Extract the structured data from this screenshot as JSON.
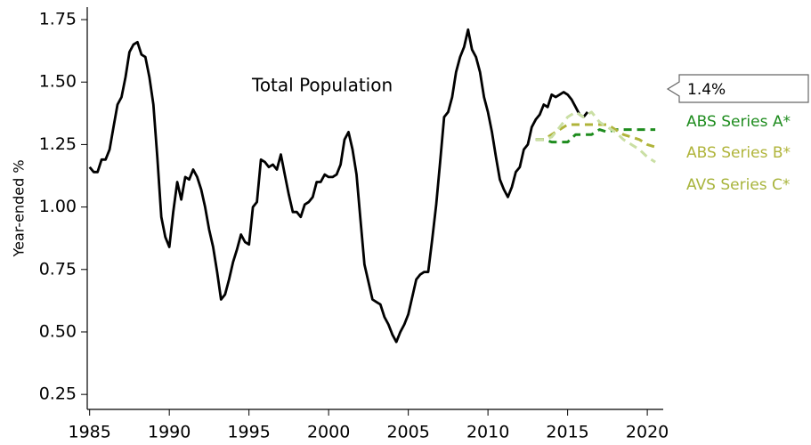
{
  "chart_data": {
    "type": "line",
    "y_label": "Year-ended %",
    "callout": "1.4%",
    "xlim": [
      1984.85,
      2021.0
    ],
    "xticks": [
      1985,
      1990,
      1995,
      2000,
      2005,
      2010,
      2015,
      2020
    ],
    "ylim": [
      0.19,
      1.8
    ],
    "yticks": [
      0.25,
      {
        "value": 0.5,
        "label": "0.50"
      },
      0.75,
      {
        "value": 1.0,
        "label": "1.00"
      },
      1.25,
      {
        "value": 1.5,
        "label": "1.50"
      },
      1.75
    ],
    "series": [
      {
        "name": "Total Population",
        "color": "#000000",
        "dashed": false,
        "x": [
          1985.0,
          1985.25,
          1985.5,
          1985.75,
          1986.0,
          1986.25,
          1986.5,
          1986.75,
          1987.0,
          1987.25,
          1987.5,
          1987.75,
          1988.0,
          1988.25,
          1988.5,
          1988.75,
          1989.0,
          1989.25,
          1989.5,
          1989.75,
          1990.0,
          1990.25,
          1990.5,
          1990.75,
          1991.0,
          1991.25,
          1991.5,
          1991.75,
          1992.0,
          1992.25,
          1992.5,
          1992.75,
          1993.0,
          1993.25,
          1993.5,
          1993.75,
          1994.0,
          1994.25,
          1994.5,
          1994.75,
          1995.0,
          1995.25,
          1995.5,
          1995.75,
          1996.0,
          1996.25,
          1996.5,
          1996.75,
          1997.0,
          1997.25,
          1997.5,
          1997.75,
          1998.0,
          1998.25,
          1998.5,
          1998.75,
          1999.0,
          1999.25,
          1999.5,
          1999.75,
          2000.0,
          2000.25,
          2000.5,
          2000.75,
          2001.0,
          2001.25,
          2001.5,
          2001.75,
          2002.0,
          2002.25,
          2002.5,
          2002.75,
          2003.0,
          2003.25,
          2003.5,
          2003.75,
          2004.0,
          2004.25,
          2004.5,
          2004.75,
          2005.0,
          2005.25,
          2005.5,
          2005.75,
          2006.0,
          2006.25,
          2006.5,
          2006.75,
          2007.0,
          2007.25,
          2007.5,
          2007.75,
          2008.0,
          2008.25,
          2008.5,
          2008.75,
          2009.0,
          2009.25,
          2009.5,
          2009.75,
          2010.0,
          2010.25,
          2010.5,
          2010.75,
          2011.0,
          2011.25,
          2011.5,
          2011.75,
          2012.0,
          2012.25,
          2012.5,
          2012.75,
          2013.0,
          2013.25,
          2013.5,
          2013.75,
          2014.0,
          2014.25,
          2014.5,
          2014.75,
          2015.0,
          2015.25,
          2015.5,
          2015.75,
          2016.0,
          2016.25
        ],
        "values": [
          1.16,
          1.14,
          1.14,
          1.19,
          1.19,
          1.23,
          1.32,
          1.41,
          1.44,
          1.52,
          1.62,
          1.65,
          1.66,
          1.61,
          1.6,
          1.52,
          1.41,
          1.2,
          0.96,
          0.88,
          0.84,
          0.98,
          1.1,
          1.03,
          1.12,
          1.11,
          1.15,
          1.12,
          1.07,
          1.0,
          0.91,
          0.84,
          0.74,
          0.63,
          0.65,
          0.71,
          0.78,
          0.83,
          0.89,
          0.86,
          0.85,
          1.0,
          1.02,
          1.19,
          1.18,
          1.16,
          1.17,
          1.15,
          1.21,
          1.13,
          1.05,
          0.98,
          0.98,
          0.96,
          1.01,
          1.02,
          1.04,
          1.1,
          1.1,
          1.13,
          1.12,
          1.12,
          1.13,
          1.17,
          1.27,
          1.3,
          1.23,
          1.13,
          0.95,
          0.77,
          0.7,
          0.63,
          0.62,
          0.61,
          0.56,
          0.53,
          0.49,
          0.46,
          0.5,
          0.53,
          0.57,
          0.64,
          0.71,
          0.73,
          0.74,
          0.74,
          0.87,
          1.01,
          1.18,
          1.36,
          1.38,
          1.44,
          1.54,
          1.6,
          1.64,
          1.71,
          1.63,
          1.6,
          1.54,
          1.44,
          1.38,
          1.3,
          1.2,
          1.11,
          1.07,
          1.04,
          1.08,
          1.14,
          1.16,
          1.23,
          1.25,
          1.32,
          1.35,
          1.37,
          1.41,
          1.4,
          1.45,
          1.44,
          1.45,
          1.46,
          1.45,
          1.43,
          1.4,
          1.37,
          1.36,
          1.38
        ]
      },
      {
        "name": "ABS Series A*",
        "color": "#1e8c1e",
        "dashed": true,
        "x": [
          2013,
          2013.5,
          2014,
          2014.5,
          2015,
          2015.5,
          2016,
          2016.5,
          2017,
          2017.5,
          2018,
          2018.5,
          2019,
          2019.5,
          2020,
          2020.5
        ],
        "values": [
          1.27,
          1.27,
          1.26,
          1.26,
          1.26,
          1.29,
          1.29,
          1.29,
          1.31,
          1.3,
          1.31,
          1.31,
          1.31,
          1.31,
          1.31,
          1.31
        ]
      },
      {
        "name": "ABS Series B*",
        "color": "#b0b43a",
        "dashed": true,
        "x": [
          2013,
          2013.5,
          2014,
          2014.5,
          2015,
          2015.5,
          2016,
          2016.5,
          2017,
          2017.5,
          2018,
          2018.5,
          2019,
          2019.5,
          2020,
          2020.5
        ],
        "values": [
          1.27,
          1.27,
          1.29,
          1.31,
          1.33,
          1.33,
          1.33,
          1.33,
          1.33,
          1.33,
          1.31,
          1.29,
          1.28,
          1.27,
          1.25,
          1.24
        ]
      },
      {
        "name": "AVS Series C*",
        "color": "#cadfa4",
        "label_color": "#a8b43c",
        "dashed": true,
        "x": [
          2013,
          2013.5,
          2014,
          2014.5,
          2015,
          2015.5,
          2016,
          2016.5,
          2017,
          2017.5,
          2018,
          2018.5,
          2019,
          2019.5,
          2020,
          2020.5
        ],
        "values": [
          1.27,
          1.27,
          1.28,
          1.32,
          1.36,
          1.38,
          1.36,
          1.38,
          1.34,
          1.32,
          1.3,
          1.27,
          1.25,
          1.23,
          1.2,
          1.18
        ]
      }
    ]
  }
}
